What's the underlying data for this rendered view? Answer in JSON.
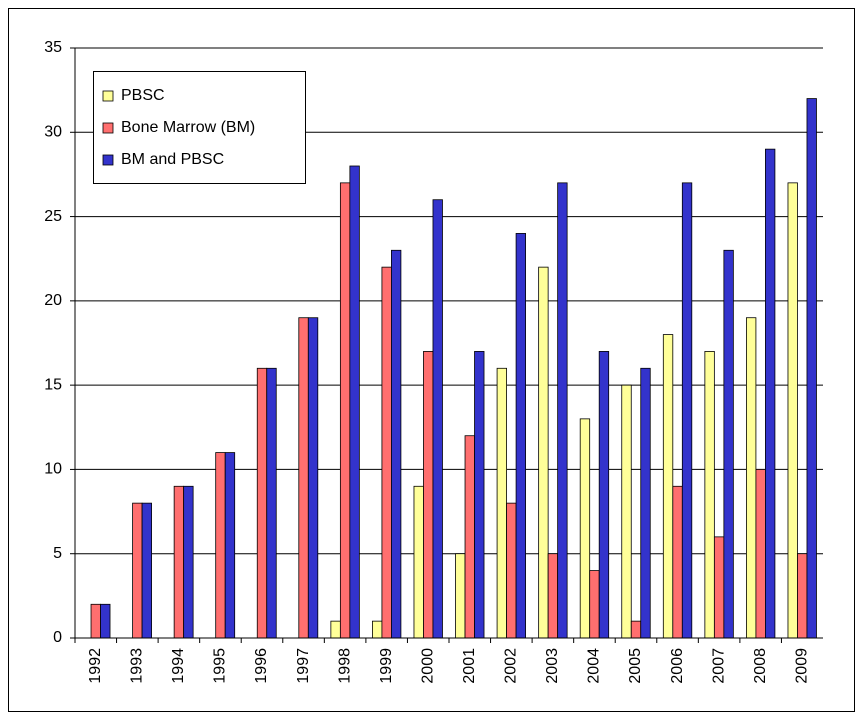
{
  "chart_data": {
    "type": "bar",
    "categories": [
      "1992",
      "1993",
      "1994",
      "1995",
      "1996",
      "1997",
      "1998",
      "1999",
      "2000",
      "2001",
      "2002",
      "2003",
      "2004",
      "2005",
      "2006",
      "2007",
      "2008",
      "2009"
    ],
    "series": [
      {
        "name": "PBSC",
        "color": "#ffff99",
        "values": [
          0,
          0,
          0,
          0,
          0,
          0,
          1,
          1,
          9,
          5,
          16,
          22,
          13,
          15,
          18,
          17,
          19,
          27
        ]
      },
      {
        "name": "Bone Marrow  (BM)",
        "color": "#ff6f6f",
        "values": [
          2,
          8,
          9,
          11,
          16,
          19,
          27,
          22,
          17,
          12,
          8,
          5,
          4,
          1,
          9,
          6,
          10,
          5
        ]
      },
      {
        "name": "BM and PBSC",
        "color": "#3333cc",
        "values": [
          2,
          8,
          9,
          11,
          16,
          19,
          28,
          23,
          26,
          17,
          24,
          27,
          17,
          16,
          27,
          23,
          29,
          32
        ]
      }
    ],
    "ylim": [
      0,
      35
    ],
    "yticks": [
      0,
      5,
      10,
      15,
      20,
      25,
      30,
      35
    ],
    "grid": true,
    "legend": "top-left"
  }
}
